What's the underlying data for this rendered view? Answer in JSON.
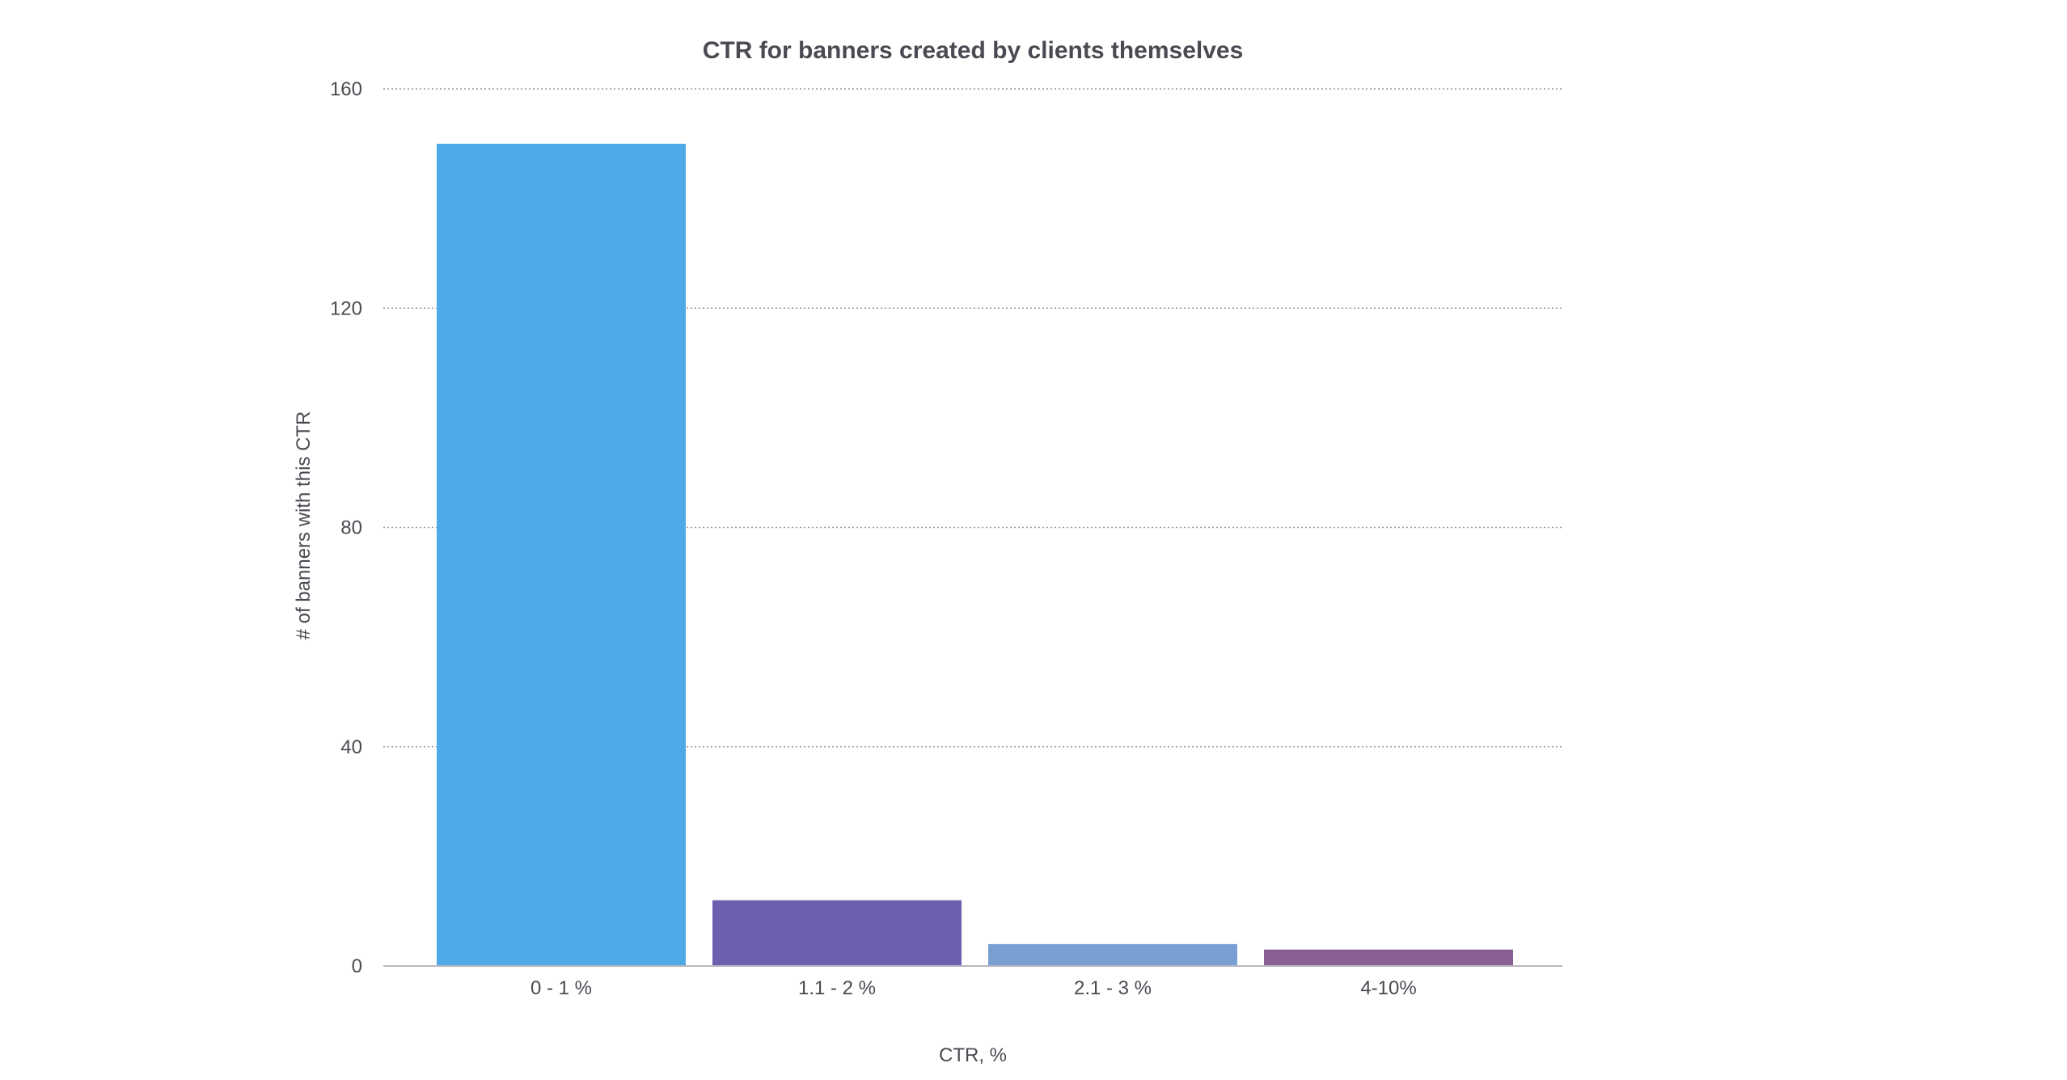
{
  "chart_data": {
    "type": "bar",
    "title": "CTR for banners created by clients themselves",
    "xlabel": "CTR, %",
    "ylabel": "# of banners with this CTR",
    "categories": [
      "0 - 1 %",
      "1.1 - 2 %",
      "2.1 - 3 %",
      "4-10%"
    ],
    "values": [
      150,
      12,
      4,
      3
    ],
    "colors": [
      "#4daae6",
      "#6c5fb0",
      "#7a9fd3",
      "#8a5f96"
    ],
    "ylim": [
      0,
      160
    ],
    "yticks": [
      0,
      40,
      80,
      120,
      160
    ],
    "grid": true,
    "legend": "none"
  }
}
